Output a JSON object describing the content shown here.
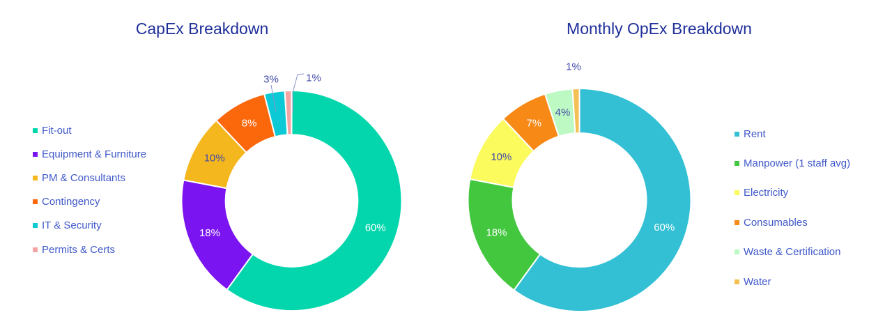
{
  "chart_data": [
    {
      "type": "pie",
      "title": "CapEx Breakdown",
      "categories": [
        "Fit-out",
        "Equipment & Furniture",
        "PM & Consultants",
        "Contingency",
        "IT & Security",
        "Permits & Certs"
      ],
      "values": [
        60,
        18,
        10,
        8,
        3,
        1
      ],
      "data_labels": [
        "60%",
        "18%",
        "10%",
        "8%",
        "3%",
        "1%"
      ],
      "colors": [
        "#03d6ac",
        "#7a14f0",
        "#f4b71e",
        "#fb680b",
        "#0bcad6",
        "#f3a4a4"
      ],
      "label_colors": [
        "#ffffff",
        "#ffffff",
        "#404aa8",
        "#ffffff",
        "#404aa8",
        "#404aa8"
      ],
      "hole_ratio": 0.6,
      "legend_position": "left"
    },
    {
      "type": "pie",
      "title": "Monthly OpEx Breakdown",
      "categories": [
        "Rent",
        "Manpower (1 staff avg)",
        "Electricity",
        "Consumables",
        "Waste & Certification",
        "Water"
      ],
      "values": [
        60,
        18,
        10,
        7,
        4,
        1
      ],
      "data_labels": [
        "60%",
        "18%",
        "10%",
        "7%",
        "4%",
        "1%"
      ],
      "colors": [
        "#33c0d4",
        "#42c73e",
        "#fbfb5e",
        "#f78917",
        "#bdf9c3",
        "#f4c054"
      ],
      "label_colors": [
        "#ffffff",
        "#ffffff",
        "#404aa8",
        "#ffffff",
        "#404aa8",
        "#404aa8"
      ],
      "hole_ratio": 0.6,
      "legend_position": "right"
    }
  ]
}
